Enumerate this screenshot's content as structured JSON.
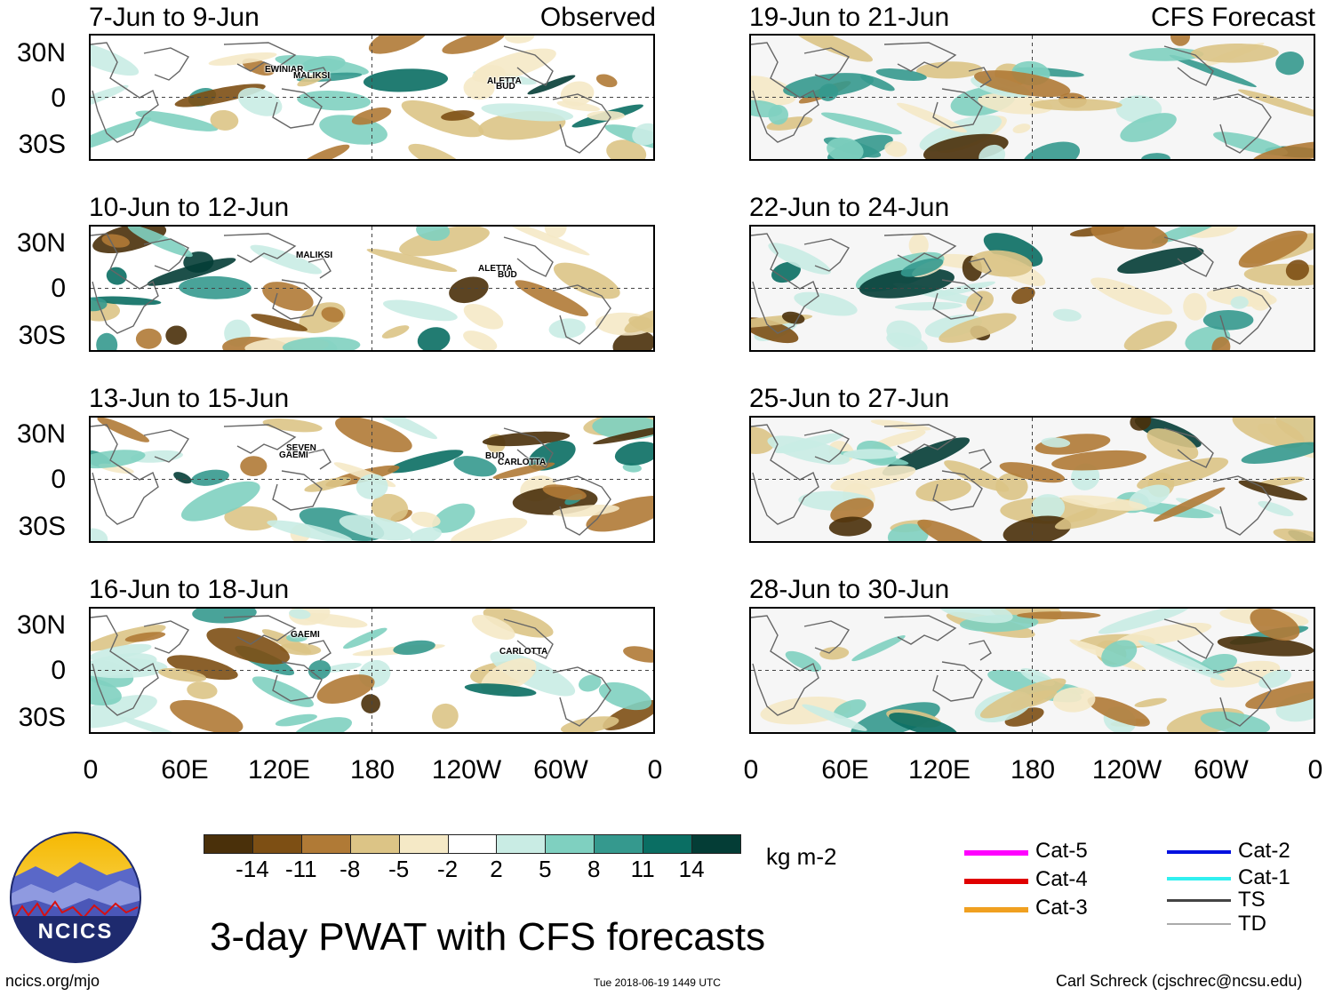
{
  "chart_data": {
    "type": "heatmap",
    "title": "3-day PWAT with CFS forecasts",
    "variable": "Precipitable water anomaly",
    "units": "kg m-2",
    "observed_label": "Observed",
    "forecast_label": "CFS Forecast",
    "lat_ticks": [
      "30N",
      "0",
      "30S"
    ],
    "lon_ticks": [
      "0",
      "60E",
      "120E",
      "180",
      "120W",
      "60W",
      "0"
    ],
    "colorbar": {
      "levels": [
        "-14",
        "-11",
        "-8",
        "-5",
        "-2",
        "2",
        "5",
        "8",
        "11",
        "14"
      ],
      "colors": [
        "#4a300a",
        "#7d4f14",
        "#b07a36",
        "#dcc486",
        "#f5e9c6",
        "#ffffff",
        "#c9ece4",
        "#7fd0c0",
        "#35998e",
        "#0a6e63",
        "#043d36"
      ]
    },
    "panels": [
      {
        "period": "7-Jun to 9-Jun",
        "type": "observed",
        "storms": [
          "EWINIAR",
          "MALIKSI",
          "ALETTA",
          "BUD"
        ]
      },
      {
        "period": "10-Jun to 12-Jun",
        "type": "observed",
        "storms": [
          "MALIKSI",
          "ALETTA",
          "BUD"
        ]
      },
      {
        "period": "13-Jun to 15-Jun",
        "type": "observed",
        "storms": [
          "SEVEN",
          "GAEMI",
          "BUD",
          "CARLOTTA"
        ]
      },
      {
        "period": "16-Jun to 18-Jun",
        "type": "observed",
        "storms": [
          "GAEMI",
          "CARLOTTA"
        ]
      },
      {
        "period": "19-Jun to 21-Jun",
        "type": "forecast",
        "storms": []
      },
      {
        "period": "22-Jun to 24-Jun",
        "type": "forecast",
        "storms": []
      },
      {
        "period": "25-Jun to 27-Jun",
        "type": "forecast",
        "storms": []
      },
      {
        "period": "28-Jun to 30-Jun",
        "type": "forecast",
        "storms": []
      }
    ],
    "storm_legend": [
      {
        "label": "Cat-5",
        "color": "#ff00ff"
      },
      {
        "label": "Cat-4",
        "color": "#e00000"
      },
      {
        "label": "Cat-3",
        "color": "#f0a020"
      },
      {
        "label": "Cat-2",
        "color": "#0010e0"
      },
      {
        "label": "Cat-1",
        "color": "#30f0f0"
      },
      {
        "label": "TS",
        "color": "#444444"
      },
      {
        "label": "TD",
        "color": "#aaaaaa"
      }
    ]
  },
  "footer": {
    "logo_text": "NCICS",
    "url": "ncics.org/mjo",
    "timestamp": "Tue 2018-06-19 1449 UTC",
    "credit": "Carl Schreck (cjschrec@ncsu.edu)"
  }
}
